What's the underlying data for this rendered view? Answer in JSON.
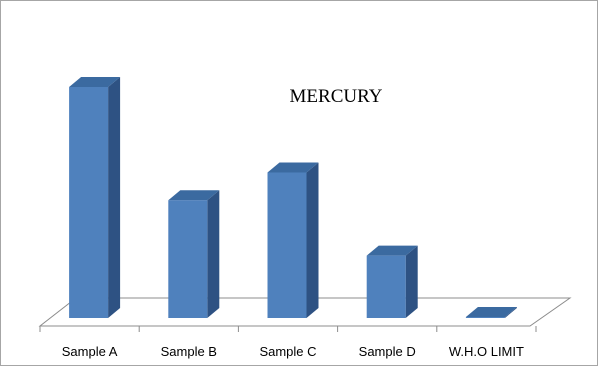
{
  "chart_data": {
    "type": "bar",
    "title": "MERCURY",
    "categories": [
      "Sample A",
      "Sample B",
      "Sample C",
      "Sample D",
      "W.H.O LIMIT"
    ],
    "values": [
      1.0,
      0.51,
      0.63,
      0.27,
      0.003
    ],
    "xlabel": "",
    "ylabel": "",
    "ylim": [
      0,
      1.0
    ],
    "grid": false,
    "legend": "none",
    "style": "3d-column",
    "colors": {
      "bar_front": "#4f81bd",
      "bar_side": "#2e5283",
      "bar_top": "#3b6aa0",
      "floor_stroke": "#8c8c8c",
      "frame_stroke": "#a6a6a6"
    }
  }
}
